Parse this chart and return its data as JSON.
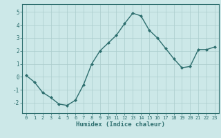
{
  "x": [
    0,
    1,
    2,
    3,
    4,
    5,
    6,
    7,
    8,
    9,
    10,
    11,
    12,
    13,
    14,
    15,
    16,
    17,
    18,
    19,
    20,
    21,
    22,
    23
  ],
  "y": [
    0.1,
    -0.4,
    -1.2,
    -1.6,
    -2.1,
    -2.2,
    -1.8,
    -0.6,
    1.0,
    2.0,
    2.6,
    3.2,
    4.1,
    4.9,
    4.7,
    3.6,
    3.0,
    2.2,
    1.4,
    0.7,
    0.8,
    2.1,
    2.1,
    2.3
  ],
  "xlabel": "Humidex (Indice chaleur)",
  "ylim": [
    -2.8,
    5.6
  ],
  "xlim": [
    -0.5,
    23.5
  ],
  "yticks": [
    -2,
    -1,
    0,
    1,
    2,
    3,
    4,
    5
  ],
  "xticks": [
    0,
    1,
    2,
    3,
    4,
    5,
    6,
    7,
    8,
    9,
    10,
    11,
    12,
    13,
    14,
    15,
    16,
    17,
    18,
    19,
    20,
    21,
    22,
    23
  ],
  "line_color": "#2d6e6e",
  "marker_color": "#2d6e6e",
  "bg_color": "#cce8e8",
  "grid_color": "#aacccc",
  "axis_color": "#2d6e6e",
  "tick_label_color": "#2d6e6e",
  "xlabel_color": "#2d6e6e",
  "font_family": "monospace"
}
